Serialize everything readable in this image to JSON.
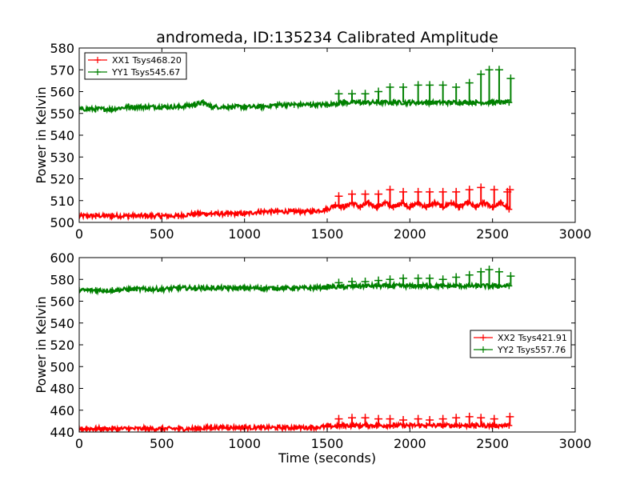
{
  "chart_data": [
    {
      "type": "line",
      "title": "andromeda, ID:135234 Calibrated Amplitude",
      "xlabel": "",
      "ylabel": "Power in Kelvin",
      "xlim": [
        0,
        3000
      ],
      "ylim": [
        500,
        580
      ],
      "xticks": [
        0,
        500,
        1000,
        1500,
        2000,
        2500,
        3000
      ],
      "yticks": [
        500,
        510,
        520,
        530,
        540,
        550,
        560,
        570,
        580
      ],
      "grid": false,
      "legend_position": "top-left",
      "series": [
        {
          "name": "XX1 Tsys468.20",
          "color": "#ff0000",
          "marker": "+",
          "x": [
            0,
            100,
            200,
            300,
            400,
            500,
            600,
            700,
            800,
            900,
            1000,
            1100,
            1200,
            1300,
            1400,
            1500,
            1550,
            1600,
            1650,
            1700,
            1750,
            1800,
            1850,
            1900,
            1950,
            2000,
            2050,
            2100,
            2150,
            2200,
            2250,
            2300,
            2350,
            2400,
            2450,
            2500,
            2550,
            2600
          ],
          "y": [
            503,
            503,
            503,
            503,
            503,
            503,
            503,
            504,
            504,
            504,
            504,
            505,
            505,
            505,
            505,
            506,
            508,
            507,
            509,
            507,
            509,
            507,
            509,
            507,
            509,
            507,
            509,
            507,
            509,
            507,
            509,
            507,
            509,
            507,
            509,
            507,
            509,
            506
          ],
          "peaks_x": [
            1570,
            1650,
            1730,
            1810,
            1880,
            1960,
            2050,
            2120,
            2200,
            2280,
            2360,
            2430,
            2510,
            2590,
            2605
          ],
          "peaks_y": [
            512,
            513,
            513,
            513,
            515,
            514,
            514,
            514,
            514,
            514,
            515,
            516,
            515,
            514,
            515
          ]
        },
        {
          "name": "YY1 Tsys545.67",
          "color": "#008000",
          "marker": "+",
          "x": [
            0,
            100,
            200,
            300,
            400,
            500,
            600,
            700,
            750,
            800,
            900,
            1000,
            1100,
            1200,
            1300,
            1400,
            1500,
            1600,
            1700,
            1800,
            1900,
            2000,
            2100,
            2200,
            2300,
            2400,
            2500,
            2600
          ],
          "y": [
            552,
            552,
            552,
            553,
            553,
            553,
            553,
            554,
            555,
            553,
            553,
            553,
            553,
            554,
            554,
            554,
            554,
            555,
            555,
            555,
            555,
            555,
            555,
            555,
            555,
            555,
            555,
            555
          ],
          "peaks_x": [
            1570,
            1650,
            1730,
            1810,
            1880,
            1960,
            2050,
            2120,
            2200,
            2280,
            2360,
            2430,
            2480,
            2540,
            2610
          ],
          "peaks_y": [
            559,
            559,
            559,
            560,
            562,
            562,
            563,
            563,
            563,
            562,
            564,
            568,
            570,
            570,
            566
          ]
        }
      ]
    },
    {
      "type": "line",
      "title": "",
      "xlabel": "Time (seconds)",
      "ylabel": "Power in Kelvin",
      "xlim": [
        0,
        3000
      ],
      "ylim": [
        440,
        600
      ],
      "xticks": [
        0,
        500,
        1000,
        1500,
        2000,
        2500,
        3000
      ],
      "yticks": [
        440,
        460,
        480,
        500,
        520,
        540,
        560,
        580,
        600
      ],
      "grid": false,
      "legend_position": "center-right",
      "series": [
        {
          "name": "XX2 Tsys421.91",
          "color": "#ff0000",
          "marker": "+",
          "x": [
            0,
            100,
            200,
            300,
            400,
            500,
            600,
            700,
            800,
            900,
            1000,
            1100,
            1200,
            1300,
            1400,
            1500,
            1600,
            1700,
            1800,
            1900,
            2000,
            2100,
            2200,
            2300,
            2400,
            2500,
            2600
          ],
          "y": [
            443,
            443,
            443,
            443,
            443,
            443,
            443,
            443,
            444,
            444,
            444,
            444,
            444,
            444,
            444,
            445,
            446,
            446,
            446,
            446,
            446,
            446,
            446,
            446,
            446,
            446,
            446
          ],
          "peaks_x": [
            1570,
            1650,
            1730,
            1810,
            1880,
            1960,
            2050,
            2120,
            2200,
            2280,
            2360,
            2430,
            2510,
            2605
          ],
          "peaks_y": [
            452,
            453,
            453,
            452,
            452,
            451,
            452,
            451,
            452,
            453,
            454,
            453,
            452,
            454
          ]
        },
        {
          "name": "YY2 Tsys557.76",
          "color": "#008000",
          "marker": "+",
          "x": [
            0,
            100,
            200,
            300,
            400,
            500,
            600,
            700,
            800,
            900,
            1000,
            1100,
            1200,
            1300,
            1400,
            1500,
            1600,
            1700,
            1800,
            1900,
            2000,
            2100,
            2200,
            2300,
            2400,
            2500,
            2600
          ],
          "y": [
            570,
            570,
            570,
            571,
            571,
            571,
            572,
            572,
            572,
            572,
            572,
            572,
            572,
            572,
            572,
            573,
            573,
            574,
            574,
            574,
            574,
            574,
            574,
            574,
            574,
            574,
            574
          ],
          "peaks_x": [
            1570,
            1650,
            1730,
            1810,
            1880,
            1960,
            2050,
            2120,
            2200,
            2280,
            2360,
            2430,
            2480,
            2540,
            2610
          ],
          "peaks_y": [
            577,
            578,
            578,
            579,
            580,
            581,
            581,
            581,
            580,
            582,
            584,
            587,
            589,
            587,
            583
          ]
        }
      ]
    }
  ]
}
